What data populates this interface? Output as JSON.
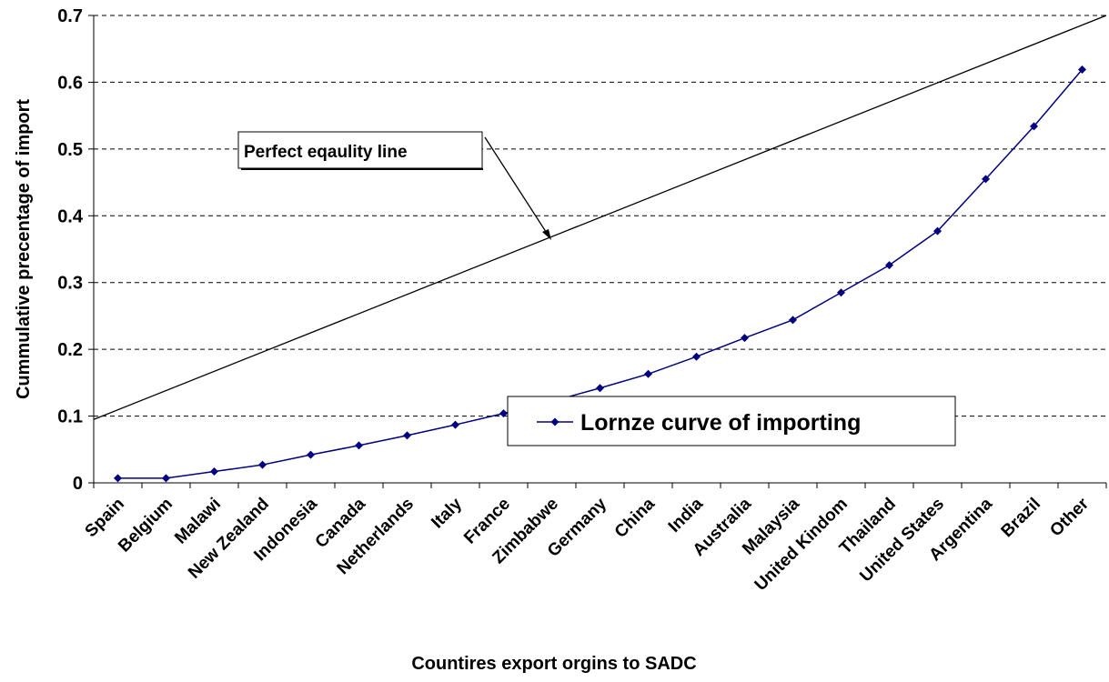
{
  "chart_data": {
    "type": "line",
    "x_label": "Countires export orgins to SADC",
    "y_label": "Cummulative precentage of import",
    "categories": [
      "Spain",
      "Belgium",
      "Malawi",
      "New Zealand",
      "Indonesia",
      "Canada",
      "Netherlands",
      "Italy",
      "France",
      "Zimbabwe",
      "Germany",
      "China",
      "India",
      "Australia",
      "Malaysia",
      "United Kindom",
      "Thailand",
      "United States",
      "Argentina",
      "Brazil",
      "Other"
    ],
    "series": [
      {
        "name": "Lornze curve of importing",
        "color": "#000080",
        "values": [
          0.007,
          0.007,
          0.017,
          0.027,
          0.042,
          0.056,
          0.071,
          0.087,
          0.104,
          0.122,
          0.142,
          0.163,
          0.189,
          0.217,
          0.244,
          0.285,
          0.326,
          0.377,
          0.455,
          0.534,
          0.619
        ]
      }
    ],
    "equality_line": {
      "values": [
        0.095,
        0.7
      ],
      "color": "#000000"
    },
    "annotations": [
      {
        "text": "Perfect eqaulity line"
      }
    ],
    "ylim": [
      0,
      0.7
    ],
    "yticks": [
      0,
      0.1,
      0.2,
      0.3,
      0.4,
      0.5,
      0.6,
      0.7
    ],
    "grid": true,
    "legend": "inside"
  }
}
